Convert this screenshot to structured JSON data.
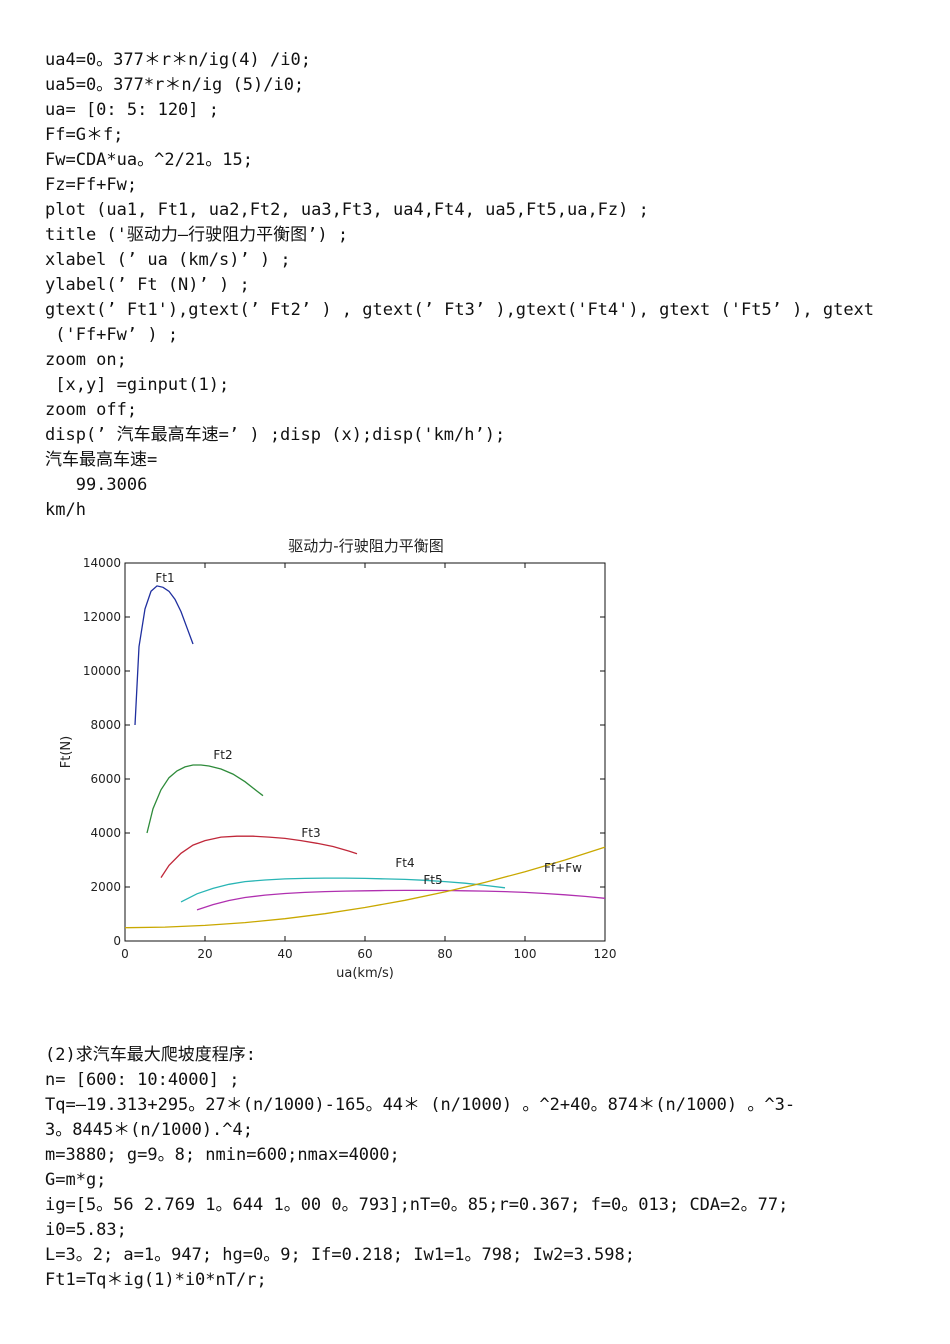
{
  "code_block_1": [
    "ua4=0。377＊r＊n/ig(4) /i0;",
    "ua5=0。377*r＊n/ig (5)/i0;",
    "ua= [0: 5: 120] ;",
    "Ff=G＊f;",
    "Fw=CDA*ua。^2/21。15;",
    "Fz=Ff+Fw;",
    "plot (ua1, Ft1, ua2,Ft2, ua3,Ft3, ua4,Ft4, ua5,Ft5,ua,Fz) ;",
    "title ('驱动力—行驶阻力平衡图’) ;",
    "xlabel (’ ua (km/s)’ ) ;",
    "ylabel(’ Ft (N)’ ) ;",
    "gtext(’ Ft1'),gtext(’ Ft2’ ) , gtext(’ Ft3’ ),gtext('Ft4'), gtext ('Ft5’ ), gtext",
    " ('Ff+Fw’ ) ;",
    "zoom on;",
    " [x,y] =ginput(1);",
    "zoom off;",
    "disp(’ 汽车最高车速=’ ) ;disp (x);disp('km/h’);",
    "汽车最高车速=",
    "   99.3006",
    "km/h"
  ],
  "code_block_2": [
    "(2)求汽车最大爬坡度程序:",
    "n= [600: 10:4000] ;",
    "Tq=—19.313+295。27＊(n/1000)-165。44＊ (n/1000) 。^2+40。874＊(n/1000) 。^3-",
    "3。8445＊(n/1000).^4;",
    "m=3880; g=9。8; nmin=600;nmax=4000;",
    "G=m*g;",
    "ig=[5。56 2.769 1。644 1。00 0。793];nT=0。85;r=0.367; f=0。013; CDA=2。77;",
    "i0=5.83;",
    "L=3。2; a=1。947; hg=0。9; If=0.218; Iw1=1。798; Iw2=3.598;",
    "Ft1=Tq＊ig(1)*i0*nT/r;"
  ],
  "chart_data": {
    "type": "line",
    "title": "驱动力-行驶阻力平衡图",
    "xlabel": "ua(km/s)",
    "ylabel": "Ft(N)",
    "xlim": [
      0,
      120
    ],
    "ylim": [
      0,
      14000
    ],
    "xticks": [
      0,
      20,
      40,
      60,
      80,
      100,
      120
    ],
    "yticks": [
      0,
      2000,
      4000,
      6000,
      8000,
      10000,
      12000,
      14000
    ],
    "grid": false,
    "series": [
      {
        "name": "Ft1",
        "color": "#1f2f9f",
        "label_at": [
          10,
          13300
        ],
        "x": [
          2.5,
          3.5,
          5,
          6.5,
          8,
          9.5,
          11,
          12.5,
          14,
          15.5,
          17
        ],
        "y": [
          8000,
          10900,
          12300,
          12950,
          13150,
          13100,
          12950,
          12650,
          12200,
          11600,
          11000
        ]
      },
      {
        "name": "Ft2",
        "color": "#2e8b3a",
        "label_at": [
          24.5,
          6750
        ],
        "x": [
          5.5,
          7,
          9,
          11,
          13,
          15,
          17,
          19,
          21,
          24,
          27,
          30,
          33,
          34.5
        ],
        "y": [
          4000,
          4900,
          5600,
          6050,
          6300,
          6450,
          6520,
          6520,
          6480,
          6370,
          6180,
          5900,
          5550,
          5380
        ]
      },
      {
        "name": "Ft3",
        "color": "#c0283a",
        "label_at": [
          46.5,
          3850
        ],
        "x": [
          9,
          11,
          14,
          17,
          20,
          24,
          28,
          32,
          36,
          40,
          44,
          48,
          52,
          56,
          58
        ],
        "y": [
          2350,
          2800,
          3250,
          3550,
          3720,
          3850,
          3880,
          3880,
          3850,
          3800,
          3720,
          3620,
          3500,
          3330,
          3230
        ]
      },
      {
        "name": "Ft4",
        "color": "#29b5b5",
        "label_at": [
          70,
          2750
        ],
        "x": [
          14,
          18,
          22,
          26,
          30,
          35,
          40,
          45,
          50,
          55,
          60,
          65,
          70,
          75,
          80,
          85,
          90,
          95
        ],
        "y": [
          1450,
          1750,
          1950,
          2100,
          2200,
          2260,
          2300,
          2320,
          2330,
          2330,
          2320,
          2300,
          2280,
          2250,
          2200,
          2140,
          2060,
          1970
        ]
      },
      {
        "name": "Ft5",
        "color": "#b030b0",
        "label_at": [
          77,
          2120
        ],
        "x": [
          18,
          22,
          26,
          30,
          35,
          40,
          45,
          50,
          55,
          60,
          65,
          70,
          75,
          80,
          85,
          90,
          95,
          100,
          105,
          110,
          115,
          120
        ],
        "y": [
          1150,
          1350,
          1500,
          1610,
          1700,
          1760,
          1800,
          1830,
          1850,
          1860,
          1870,
          1875,
          1875,
          1870,
          1860,
          1850,
          1830,
          1800,
          1760,
          1710,
          1650,
          1580
        ]
      },
      {
        "name": "Ff+Fw",
        "color": "#c9a800",
        "label_at": [
          109.5,
          2550
        ],
        "x": [
          0,
          10,
          20,
          30,
          40,
          50,
          60,
          70,
          80,
          90,
          100,
          110,
          120
        ],
        "y": [
          494,
          515,
          577,
          681,
          826,
          1012,
          1240,
          1509,
          1820,
          2172,
          2566,
          3001,
          3478
        ]
      }
    ]
  }
}
